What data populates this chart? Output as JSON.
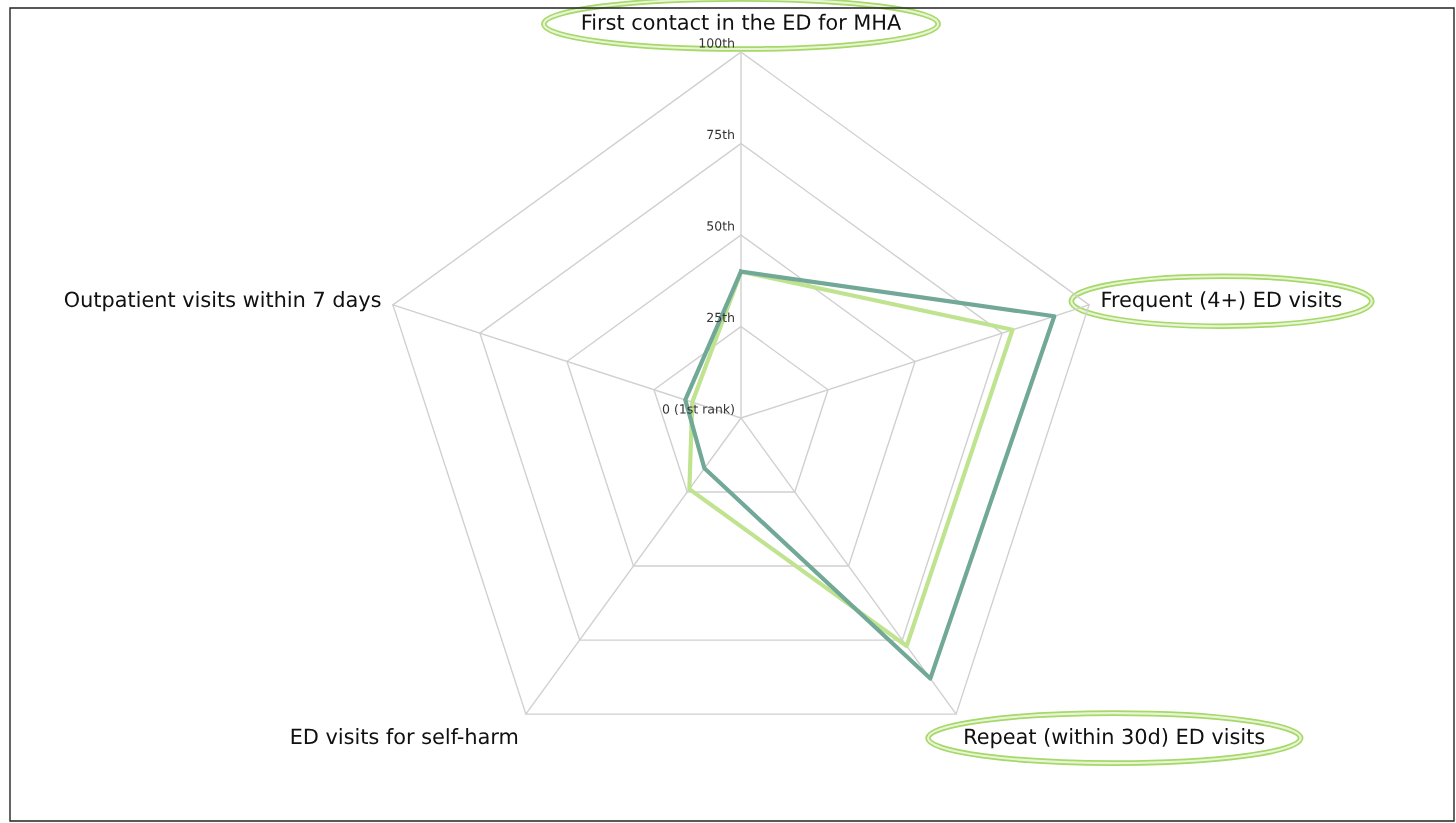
{
  "chart_data": {
    "type": "radar",
    "categories": [
      "First contact in the ED for MHA",
      "Frequent (4+) ED visits",
      "Repeat (within 30d) ED visits",
      "ED visits for self-harm",
      "Outpatient visits within 7 days"
    ],
    "series": [
      {
        "color": "#bfe38f",
        "values": [
          40,
          78,
          77,
          24,
          14
        ]
      },
      {
        "color": "#72a898",
        "values": [
          40,
          90,
          88,
          17,
          16
        ]
      }
    ],
    "ylim": [
      0,
      100
    ],
    "yticks": [
      {
        "value": 0,
        "label": "0 (1st rank)"
      },
      {
        "value": 25,
        "label": "25th"
      },
      {
        "value": 50,
        "label": "50th"
      },
      {
        "value": 75,
        "label": "75th"
      },
      {
        "value": 100,
        "label": "100th"
      }
    ],
    "grid": true
  }
}
